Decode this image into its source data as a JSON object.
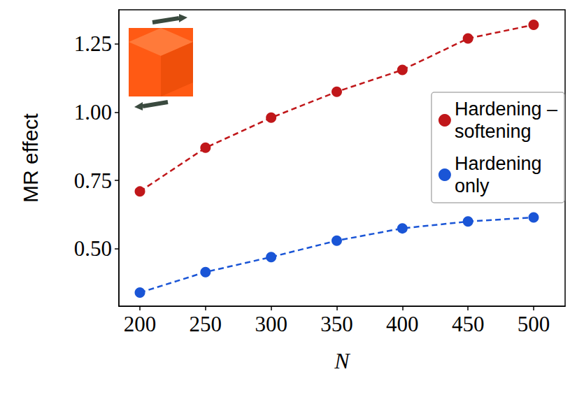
{
  "chart_data": {
    "type": "line",
    "x_label": "N",
    "y_label": "MR effect",
    "x": [
      200,
      250,
      300,
      350,
      400,
      450,
      500
    ],
    "series": [
      {
        "name": "Hardening – softening",
        "color": "#c0171a",
        "marker": "circle",
        "line_style": "dashed",
        "values": [
          0.71,
          0.87,
          0.98,
          1.075,
          1.155,
          1.27,
          1.32
        ]
      },
      {
        "name": "Hardening only",
        "color": "#1a55d6",
        "marker": "circle",
        "line_style": "dashed",
        "values": [
          0.34,
          0.415,
          0.47,
          0.53,
          0.575,
          0.6,
          0.615
        ]
      }
    ],
    "xlim": [
      184,
      524
    ],
    "xticks": [
      200,
      250,
      300,
      350,
      400,
      450,
      500
    ],
    "ylim": [
      0.29,
      1.375
    ],
    "yticks": [
      {
        "value": 0.5,
        "label": "0.50"
      },
      {
        "value": 0.75,
        "label": "0.75"
      },
      {
        "value": 1.0,
        "label": "1.00"
      },
      {
        "value": 1.25,
        "label": "1.25"
      }
    ],
    "grid": false,
    "legend": "right"
  }
}
